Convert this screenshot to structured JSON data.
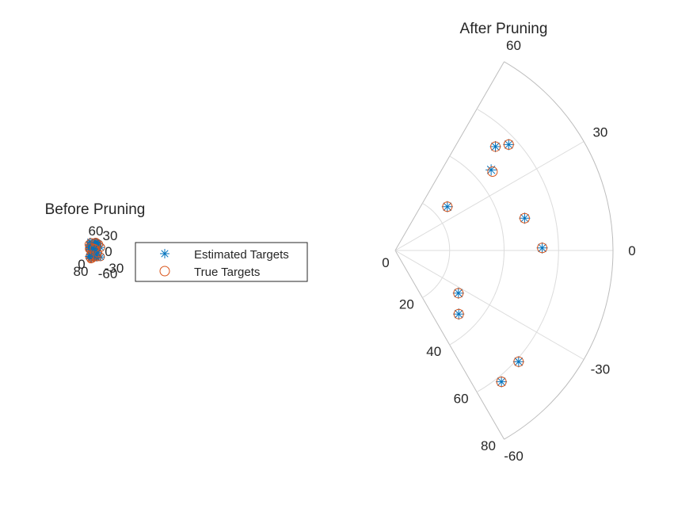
{
  "figure": {
    "legend": {
      "entries": [
        {
          "label": "Estimated Targets",
          "marker": "asterisk",
          "color": "#0072BD"
        },
        {
          "label": "True Targets",
          "marker": "circle",
          "color": "#D95319"
        }
      ]
    }
  },
  "chart_data": [
    {
      "type": "scatter",
      "coordinate_system": "polar",
      "title": "Before Pruning",
      "theta_ticks": [
        "60",
        "30",
        "0",
        "-30",
        "-60"
      ],
      "r_ticks": [
        "0",
        "80"
      ],
      "theta_range_deg": [
        -60,
        60
      ],
      "r_range": [
        0,
        80
      ],
      "grid": true,
      "note_visible": "dense cluster of many overlapping markers"
    },
    {
      "type": "scatter",
      "coordinate_system": "polar",
      "title": "After Pruning",
      "theta_ticks": [
        "60",
        "30",
        "0",
        "-30",
        "-60"
      ],
      "r_ticks": [
        "0",
        "20",
        "40",
        "60",
        "80"
      ],
      "theta_range_deg": [
        -60,
        60
      ],
      "r_range": [
        0,
        80
      ],
      "grid": true,
      "series": [
        {
          "name": "Estimated Targets",
          "marker": "asterisk",
          "color": "#0072BD",
          "points": [
            {
              "theta": 40,
              "r": 25
            },
            {
              "theta": 40,
              "r": 46
            },
            {
              "theta": 46,
              "r": 53
            },
            {
              "theta": 43,
              "r": 57
            },
            {
              "theta": 14,
              "r": 49
            },
            {
              "theta": 1,
              "r": 54
            },
            {
              "theta": -34,
              "r": 28
            },
            {
              "theta": -45,
              "r": 33
            },
            {
              "theta": -42,
              "r": 61
            },
            {
              "theta": -51,
              "r": 62
            }
          ]
        },
        {
          "name": "True Targets",
          "marker": "circle",
          "color": "#D95319",
          "points": [
            {
              "theta": 40,
              "r": 25
            },
            {
              "theta": 39,
              "r": 46
            },
            {
              "theta": 46,
              "r": 53
            },
            {
              "theta": 43,
              "r": 57
            },
            {
              "theta": 14,
              "r": 49
            },
            {
              "theta": 1,
              "r": 54
            },
            {
              "theta": -34,
              "r": 28
            },
            {
              "theta": -45,
              "r": 33
            },
            {
              "theta": -42,
              "r": 61
            },
            {
              "theta": -51,
              "r": 62
            }
          ]
        }
      ]
    }
  ]
}
